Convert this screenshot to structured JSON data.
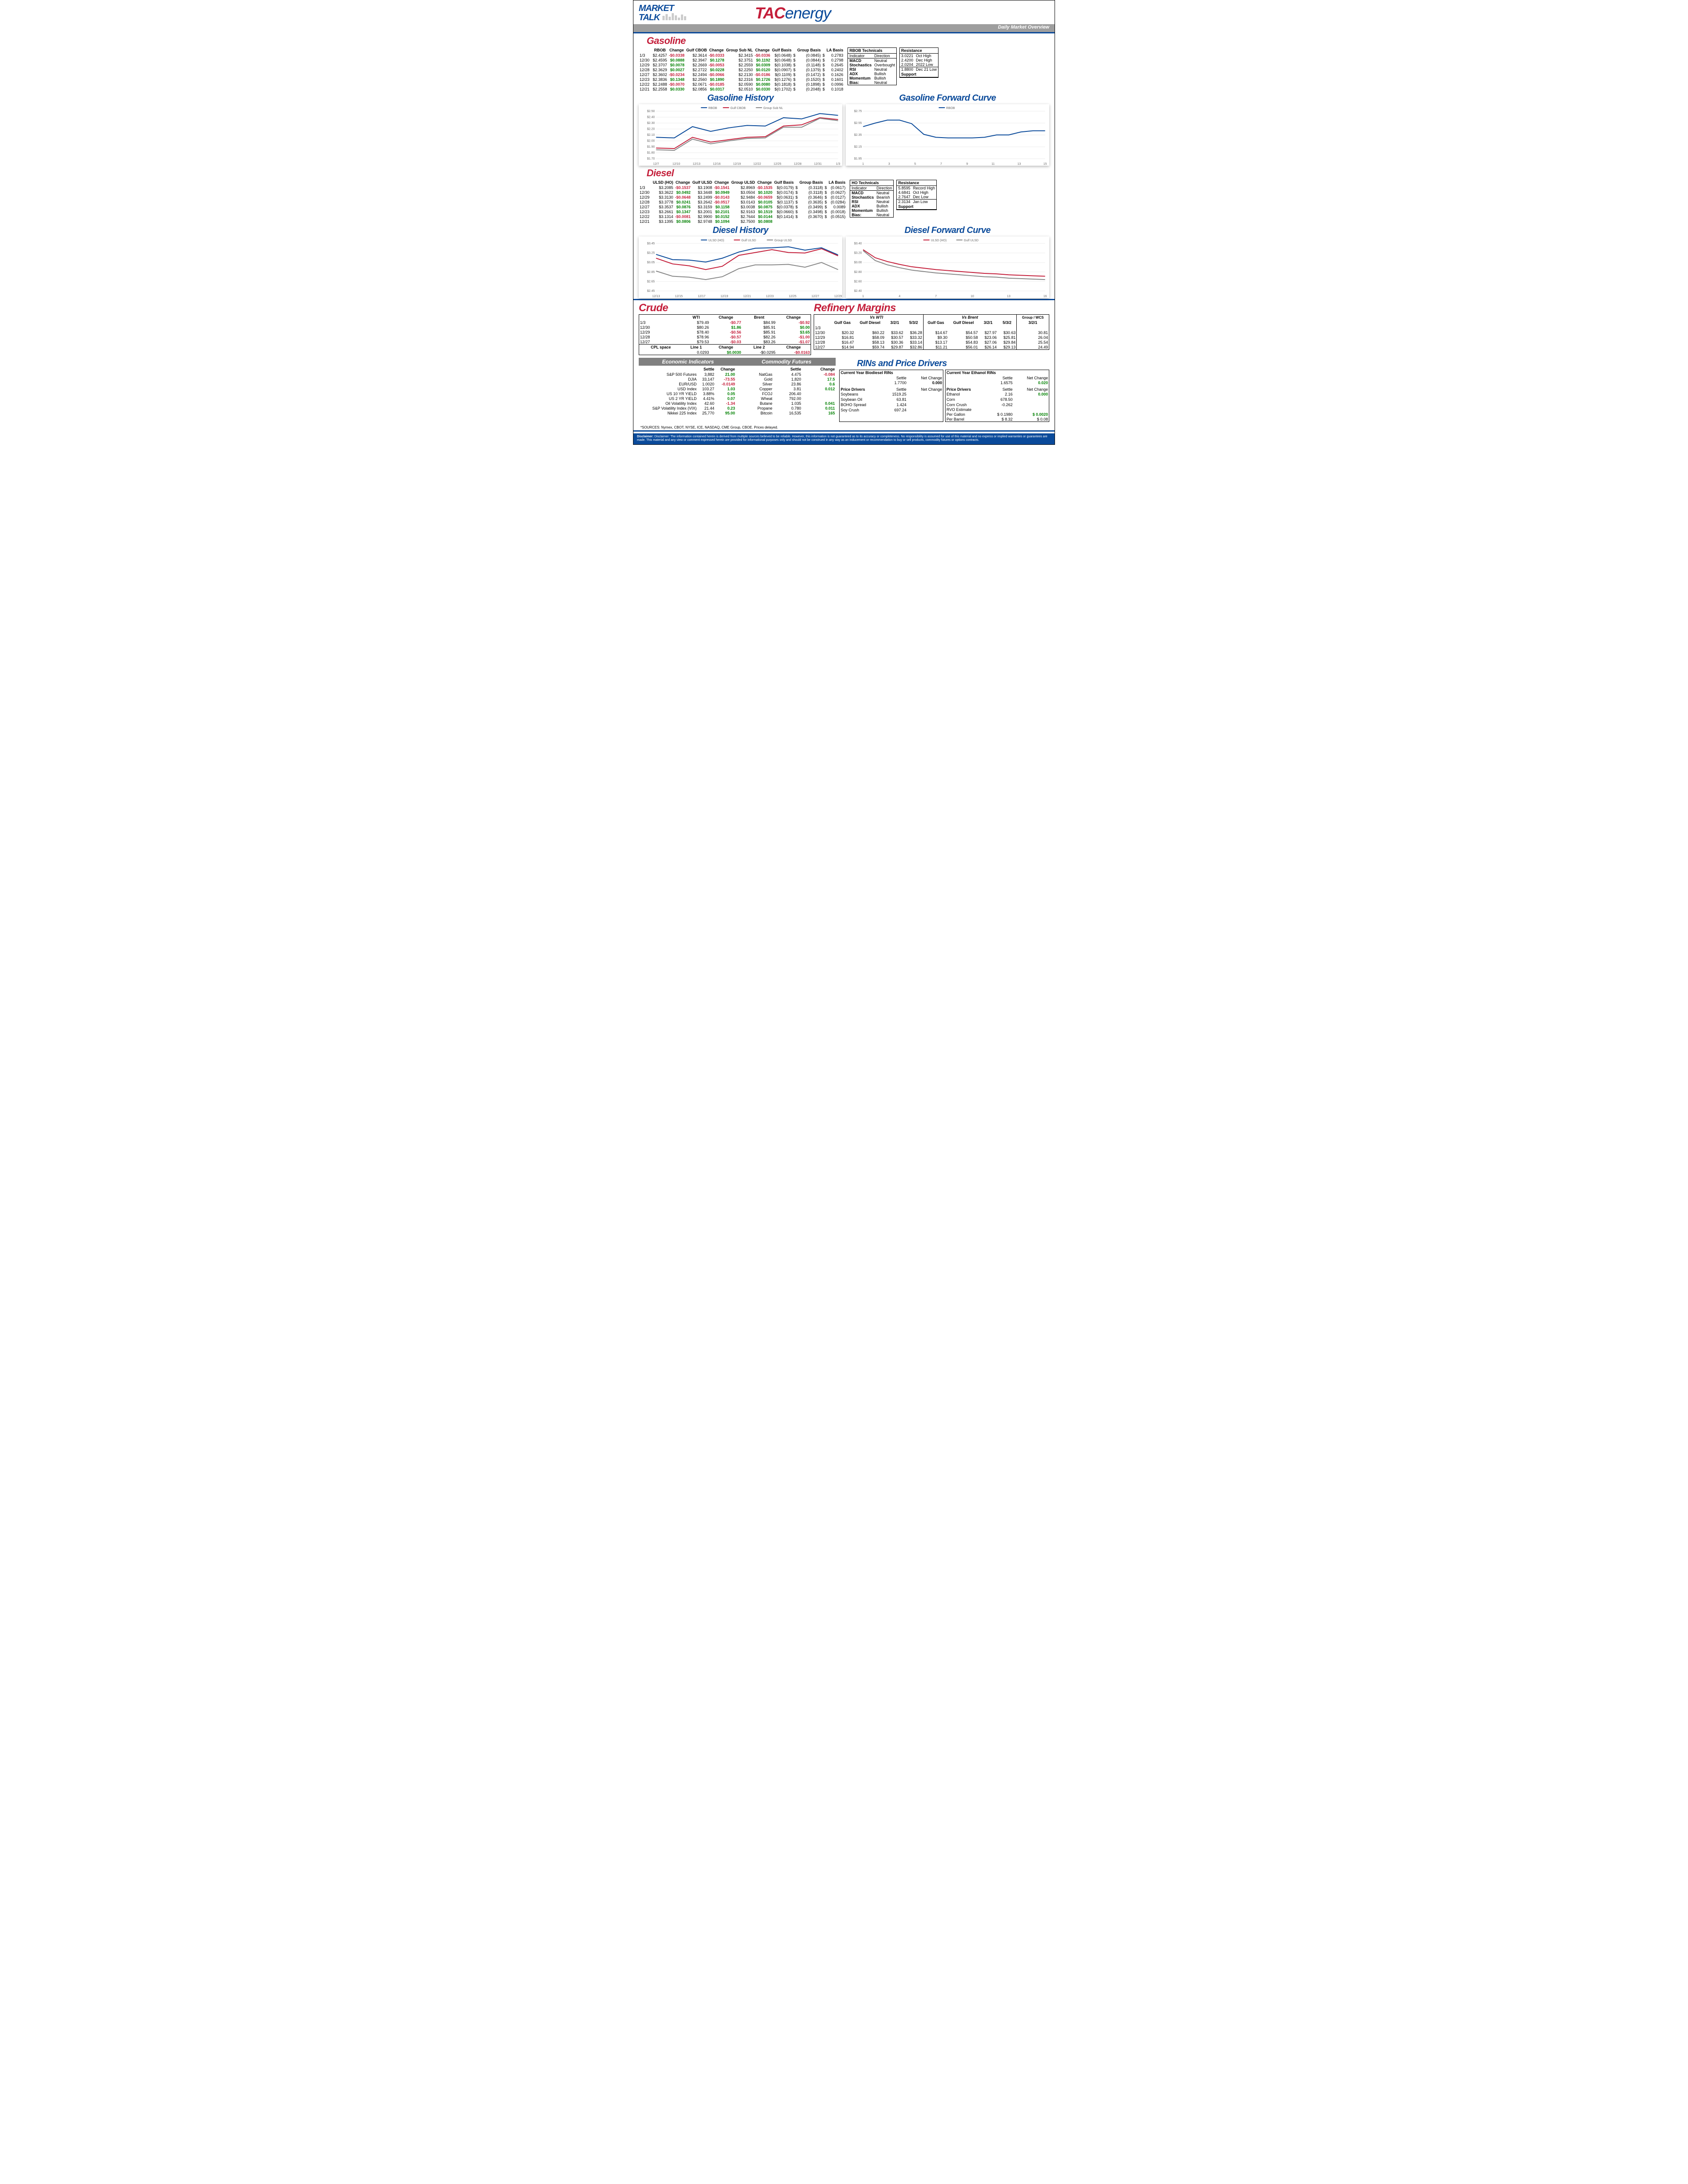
{
  "header": {
    "market_talk_1": "MARKET",
    "market_talk_2": "TALK",
    "logo_tac": "TAC",
    "logo_energy": "energy",
    "overview_label": "Daily Market Overview"
  },
  "gasoline": {
    "title": "Gasoline",
    "headers": [
      "",
      "RBOB",
      "Change",
      "Gulf CBOB",
      "Change",
      "Group Sub NL",
      "Change",
      "Gulf Basis",
      "Group Basis",
      "LA Basis"
    ],
    "rows": [
      [
        "1/3",
        "$2.4257",
        "-$0.0338",
        "$2.3614",
        "-$0.0333",
        "$2.3415",
        "-$0.0336",
        "$(0.0648)",
        "$",
        "(0.0845)",
        "$",
        "0.2783"
      ],
      [
        "12/30",
        "$2.4595",
        "$0.0888",
        "$2.3947",
        "$0.1278",
        "$2.3751",
        "$0.1192",
        "$(0.0648)",
        "$",
        "(0.0844)",
        "$",
        "0.2798"
      ],
      [
        "12/29",
        "$2.3707",
        "$0.0078",
        "$2.2669",
        "-$0.0053",
        "$2.2559",
        "$0.0309",
        "$(0.1038)",
        "$",
        "(0.1148)",
        "$",
        "0.2645"
      ],
      [
        "12/28",
        "$2.3629",
        "$0.0027",
        "$2.2722",
        "$0.0228",
        "$2.2250",
        "$0.0120",
        "$(0.0907)",
        "$",
        "(0.1379)",
        "$",
        "0.2402"
      ],
      [
        "12/27",
        "$2.3602",
        "-$0.0234",
        "$2.2494",
        "-$0.0066",
        "$2.2130",
        "-$0.0186",
        "$(0.1109)",
        "$",
        "(0.1472)",
        "$",
        "0.1626"
      ],
      [
        "12/23",
        "$2.3836",
        "$0.1348",
        "$2.2560",
        "$0.1890",
        "$2.2316",
        "$0.1726",
        "$(0.1276)",
        "$",
        "(0.1520)",
        "$",
        "0.1601"
      ],
      [
        "12/22",
        "$2.2488",
        "-$0.0070",
        "$2.0671",
        "-$0.0185",
        "$2.0590",
        "$0.0080",
        "$(0.1818)",
        "$",
        "(0.1898)",
        "$",
        "0.0996"
      ],
      [
        "12/21",
        "$2.2558",
        "$0.0330",
        "$2.0856",
        "$0.0317",
        "$2.0510",
        "$0.0330",
        "$(0.1702)",
        "$",
        "(0.2048)",
        "$",
        "0.1018"
      ]
    ],
    "row_signs": [
      [
        0,
        -1,
        0,
        -1,
        0,
        -1,
        0,
        0,
        0,
        0
      ],
      [
        0,
        1,
        0,
        1,
        0,
        1,
        0,
        0,
        0,
        0
      ],
      [
        0,
        1,
        0,
        -1,
        0,
        1,
        0,
        0,
        0,
        0
      ],
      [
        0,
        1,
        0,
        1,
        0,
        1,
        0,
        0,
        0,
        0
      ],
      [
        0,
        -1,
        0,
        -1,
        0,
        -1,
        0,
        0,
        0,
        0
      ],
      [
        0,
        1,
        0,
        1,
        0,
        1,
        0,
        0,
        0,
        0
      ],
      [
        0,
        -1,
        0,
        -1,
        0,
        1,
        0,
        0,
        0,
        0
      ],
      [
        0,
        1,
        0,
        1,
        0,
        1,
        0,
        0,
        0,
        0
      ]
    ],
    "tech_title": "RBOB Technicals",
    "tech_headers": [
      "Indicator",
      "Direction"
    ],
    "tech_rows": [
      [
        "MACD",
        "Neutral"
      ],
      [
        "Stochastics",
        "Overbought"
      ],
      [
        "RSI",
        "Neutral"
      ],
      [
        "ADX",
        "Bullish"
      ],
      [
        "Momentum",
        "Bullish"
      ],
      [
        "Bias:",
        "Neutral"
      ]
    ],
    "res_title": "Resistance",
    "res_rows": [
      [
        "3.0221",
        "Oct High"
      ],
      [
        "2.4200",
        "Dec High"
      ],
      [
        "2.0204",
        "2022 Low"
      ],
      [
        "1.8800",
        "Dec 21 Low"
      ]
    ],
    "sup_title": "Support",
    "history_title": "Gasoline History",
    "forward_title": "Gasoline Forward Curve",
    "history_chart": {
      "type": "line",
      "colors": {
        "RBOB": "#0a4a9a",
        "Gulf CBOB": "#c41e3a",
        "Group Sub NL": "#888"
      },
      "x_labels": [
        "12/7",
        "12/10",
        "12/13",
        "12/16",
        "12/19",
        "12/22",
        "12/25",
        "12/28",
        "12/31",
        "1/3"
      ],
      "y_labels": [
        "$1.70",
        "$1.80",
        "$1.90",
        "$2.00",
        "$2.10",
        "$2.20",
        "$2.30",
        "$2.40",
        "$2.50"
      ],
      "ylim": [
        1.7,
        2.5
      ],
      "series": {
        "RBOB": [
          2.06,
          2.05,
          2.24,
          2.16,
          2.22,
          2.26,
          2.25,
          2.39,
          2.37,
          2.46,
          2.43
        ],
        "Gulf CBOB": [
          1.88,
          1.87,
          2.06,
          1.98,
          2.02,
          2.06,
          2.07,
          2.25,
          2.27,
          2.39,
          2.36
        ],
        "Group Sub NL": [
          1.85,
          1.84,
          2.03,
          1.95,
          2.0,
          2.04,
          2.05,
          2.23,
          2.23,
          2.38,
          2.34
        ]
      }
    },
    "forward_chart": {
      "type": "line",
      "colors": {
        "RBOB": "#0a4a9a"
      },
      "x_labels": [
        "1",
        "3",
        "5",
        "7",
        "9",
        "11",
        "13",
        "15"
      ],
      "y_labels": [
        "$1.95",
        "$2.15",
        "$2.35",
        "$2.55",
        "$2.75"
      ],
      "ylim": [
        1.95,
        2.75
      ],
      "series": {
        "RBOB": [
          2.49,
          2.55,
          2.6,
          2.6,
          2.54,
          2.36,
          2.31,
          2.3,
          2.3,
          2.3,
          2.31,
          2.35,
          2.35,
          2.4,
          2.42,
          2.42
        ]
      }
    }
  },
  "diesel": {
    "title": "Diesel",
    "headers": [
      "",
      "ULSD (HO)",
      "Change",
      "Gulf ULSD",
      "Change",
      "Group ULSD",
      "Change",
      "Gulf Basis",
      "Group Basis",
      "LA Basis"
    ],
    "rows": [
      [
        "1/3",
        "$3.2085",
        "-$0.1537",
        "$3.1908",
        "-$0.1541",
        "$2.8969",
        "-$0.1535",
        "$(0.0179)",
        "$",
        "(0.3118)",
        "$",
        "(0.0617)"
      ],
      [
        "12/30",
        "$3.3622",
        "$0.0492",
        "$3.3448",
        "$0.0949",
        "$3.0504",
        "$0.1020",
        "$(0.0174)",
        "$",
        "(0.3118)",
        "$",
        "(0.0627)"
      ],
      [
        "12/29",
        "$3.3130",
        "-$0.0648",
        "$3.2499",
        "-$0.0143",
        "$2.9484",
        "-$0.0659",
        "$(0.0631)",
        "$",
        "(0.3646)",
        "$",
        "(0.0127)"
      ],
      [
        "12/28",
        "$3.3778",
        "$0.0241",
        "$3.2642",
        "-$0.0517",
        "$3.0143",
        "$0.0105",
        "$(0.1137)",
        "$",
        "(0.3635)",
        "$",
        "(0.0284)"
      ],
      [
        "12/27",
        "$3.3537",
        "$0.0876",
        "$3.3159",
        "$0.1158",
        "$3.0038",
        "$0.0875",
        "$(0.0378)",
        "$",
        "(0.3499)",
        "$",
        "0.0089"
      ],
      [
        "12/23",
        "$3.2661",
        "$0.1347",
        "$3.2001",
        "$0.2101",
        "$2.9163",
        "$0.1519",
        "$(0.0660)",
        "$",
        "(0.3498)",
        "$",
        "(0.0018)"
      ],
      [
        "12/22",
        "$3.1314",
        "-$0.0081",
        "$2.9900",
        "$0.0152",
        "$2.7644",
        "$0.0144",
        "$(0.1414)",
        "$",
        "(0.3670)",
        "$",
        "(0.0515)"
      ],
      [
        "12/21",
        "$3.1395",
        "$0.0806",
        "$2.9748",
        "$0.1094",
        "$2.7500",
        "$0.0808",
        "",
        "",
        "",
        "",
        ""
      ]
    ],
    "row_signs": [
      [
        0,
        -1,
        0,
        -1,
        0,
        -1,
        0,
        0,
        0,
        0
      ],
      [
        0,
        1,
        0,
        1,
        0,
        1,
        0,
        0,
        0,
        0
      ],
      [
        0,
        -1,
        0,
        -1,
        0,
        -1,
        0,
        0,
        0,
        0
      ],
      [
        0,
        1,
        0,
        -1,
        0,
        1,
        0,
        0,
        0,
        0
      ],
      [
        0,
        1,
        0,
        1,
        0,
        1,
        0,
        0,
        0,
        0
      ],
      [
        0,
        1,
        0,
        1,
        0,
        1,
        0,
        0,
        0,
        0
      ],
      [
        0,
        -1,
        0,
        1,
        0,
        1,
        0,
        0,
        0,
        0
      ],
      [
        0,
        1,
        0,
        1,
        0,
        1,
        0,
        0,
        0,
        0
      ]
    ],
    "tech_title": "HO Technicals",
    "tech_headers": [
      "Indicator",
      "Direction"
    ],
    "tech_rows": [
      [
        "MACD",
        "Neutral"
      ],
      [
        "Stochastics",
        "Bearish"
      ],
      [
        "RSI",
        "Neutral"
      ],
      [
        "ADX",
        "Bullish"
      ],
      [
        "Momentum",
        "Bullish"
      ],
      [
        "Bias:",
        "Neutral"
      ]
    ],
    "res_title": "Resistance",
    "res_rows": [
      [
        "5.8595",
        "Record High"
      ],
      [
        "4.6841",
        "Oct High"
      ],
      [
        "2.7647",
        "Dec Low"
      ],
      [
        "2.3134",
        "Jan Low"
      ]
    ],
    "sup_title": "Support",
    "history_title": "Diesel History",
    "forward_title": "Diesel Forward Curve",
    "history_chart": {
      "type": "line",
      "colors": {
        "ULSD (HO)": "#0a4a9a",
        "Gulf ULSD": "#c41e3a",
        "Group ULSD": "#888"
      },
      "x_labels": [
        "12/13",
        "12/15",
        "12/17",
        "12/19",
        "12/21",
        "12/23",
        "12/25",
        "12/27",
        "12/29"
      ],
      "y_labels": [
        "$2.45",
        "$2.65",
        "$2.85",
        "$3.05",
        "$3.25",
        "$3.45"
      ],
      "ylim": [
        2.45,
        3.45
      ],
      "series": {
        "ULSD (HO)": [
          3.22,
          3.11,
          3.1,
          3.06,
          3.14,
          3.27,
          3.35,
          3.36,
          3.38,
          3.31,
          3.36,
          3.21
        ],
        "Gulf ULSD": [
          3.14,
          3.02,
          2.98,
          2.9,
          2.97,
          3.2,
          3.26,
          3.32,
          3.26,
          3.25,
          3.34,
          3.19
        ],
        "Group ULSD": [
          2.87,
          2.76,
          2.74,
          2.69,
          2.75,
          2.92,
          3.0,
          3.0,
          3.01,
          2.95,
          3.05,
          2.9
        ]
      }
    },
    "forward_chart": {
      "type": "line",
      "colors": {
        "ULSD (HO)": "#c41e3a",
        "Gulf ULSD": "#888"
      },
      "x_labels": [
        "1",
        "4",
        "7",
        "10",
        "13",
        "16"
      ],
      "y_labels": [
        "$2.40",
        "$2.60",
        "$2.80",
        "$3.00",
        "$3.20",
        "$3.40"
      ],
      "ylim": [
        2.4,
        3.4
      ],
      "series": {
        "ULSD (HO)": [
          3.27,
          3.1,
          3.02,
          2.96,
          2.91,
          2.88,
          2.85,
          2.83,
          2.81,
          2.79,
          2.77,
          2.76,
          2.74,
          2.73,
          2.72,
          2.71
        ],
        "Gulf ULSD": [
          3.25,
          3.04,
          2.95,
          2.89,
          2.84,
          2.81,
          2.78,
          2.76,
          2.74,
          2.72,
          2.7,
          2.69,
          2.67,
          2.66,
          2.65,
          2.64
        ]
      }
    }
  },
  "crude": {
    "title": "Crude",
    "headers": [
      "",
      "WTI",
      "Change",
      "Brent",
      "Change"
    ],
    "rows": [
      [
        "1/3",
        "$79.49",
        "-$0.77",
        "$84.99",
        "-$0.92"
      ],
      [
        "12/30",
        "$80.26",
        "$1.86",
        "$85.91",
        "$0.00"
      ],
      [
        "12/29",
        "$78.40",
        "-$0.56",
        "$85.91",
        "$3.65"
      ],
      [
        "12/28",
        "$78.96",
        "-$0.57",
        "$82.26",
        "-$1.00"
      ],
      [
        "12/27",
        "$79.53",
        "-$0.03",
        "$83.26",
        "-$1.07"
      ]
    ],
    "row_signs": [
      [
        -1,
        -1
      ],
      [
        1,
        1
      ],
      [
        -1,
        1
      ],
      [
        -1,
        -1
      ],
      [
        -1,
        -1
      ]
    ],
    "cpl_headers": [
      "CPL space",
      "Line 1",
      "Change",
      "Line 2",
      "Change"
    ],
    "cpl_row": [
      "",
      "0.0293",
      "$0.0030",
      "-$0.0295",
      "-$0.0163"
    ],
    "cpl_signs": [
      0,
      1,
      0,
      -1
    ]
  },
  "margins": {
    "title": "Refinery Margins",
    "wti_label": "Vs WTI",
    "brent_label": "Vs Brent",
    "group_label": "Group / WCS",
    "sub_headers": [
      "Gulf Gas",
      "Gulf Diesel",
      "3/2/1",
      "5/3/2",
      "Gulf Gas",
      "Gulf Diesel",
      "3/2/1",
      "5/3/2",
      "3/2/1"
    ],
    "rows": [
      [
        "1/3",
        "",
        "",
        "",
        "",
        "",
        "",
        "",
        "",
        ""
      ],
      [
        "12/30",
        "$20.32",
        "$60.22",
        "$33.62",
        "$36.28",
        "$14.67",
        "$54.57",
        "$27.97",
        "$30.63",
        "30.81"
      ],
      [
        "12/29",
        "$16.81",
        "$58.09",
        "$30.57",
        "$33.32",
        "$9.30",
        "$50.58",
        "$23.06",
        "$25.81",
        "26.04"
      ],
      [
        "12/28",
        "$16.47",
        "$58.13",
        "$30.36",
        "$33.14",
        "$13.17",
        "$54.83",
        "$27.06",
        "$29.84",
        "25.54"
      ],
      [
        "12/27",
        "$14.94",
        "$59.74",
        "$29.87",
        "$32.86",
        "$11.21",
        "$56.01",
        "$26.14",
        "$29.13",
        "24.49"
      ]
    ]
  },
  "econ": {
    "title": "Economic Indicators",
    "headers": [
      "",
      "Settle",
      "Change"
    ],
    "rows": [
      [
        "S&P 500 Futures",
        "3,882",
        "21.00",
        1
      ],
      [
        "DJIA",
        "33,147",
        "-73.55",
        -1
      ],
      [
        "EUR/USD",
        "1.0020",
        "-0.0149",
        -1
      ],
      [
        "USD Index",
        "103.27",
        "1.03",
        1
      ],
      [
        "US 10 YR YIELD",
        "3.88%",
        "0.05",
        1
      ],
      [
        "US 2 YR YIELD",
        "4.41%",
        "0.07",
        1
      ],
      [
        "Oil Volatility Index",
        "42.60",
        "-1.34",
        -1
      ],
      [
        "S&P Volatility Index (VIX)",
        "21.44",
        "0.23",
        1
      ],
      [
        "Nikkei 225 Index",
        "25,770",
        "95.00",
        1
      ]
    ]
  },
  "commod": {
    "title": "Commodity Futures",
    "headers": [
      "",
      "Settle",
      "Change"
    ],
    "rows": [
      [
        "NatGas",
        "4.475",
        "-0.084",
        -1
      ],
      [
        "Gold",
        "1,820",
        "17.5",
        1
      ],
      [
        "Silver",
        "23.86",
        "0.6",
        1
      ],
      [
        "Copper",
        "3.81",
        "0.012",
        1
      ],
      [
        "FCOJ",
        "206.40",
        "",
        0
      ],
      [
        "Wheat",
        "792.00",
        "",
        0
      ],
      [
        "Butane",
        "1.035",
        "0.041",
        1
      ],
      [
        "Propane",
        "0.780",
        "0.011",
        1
      ],
      [
        "Bitcoin",
        "16,535",
        "165",
        1
      ]
    ]
  },
  "rins": {
    "title": "RINs and Price Drivers",
    "bio_title": "Current Year Biodiesel RINs",
    "eth_title": "Current Year Ethanol RINs",
    "headers": [
      "",
      "Settle",
      "Net Change"
    ],
    "bio_val": [
      "",
      "1.7700",
      "0.000"
    ],
    "eth_val": [
      "",
      "1.6575",
      "0.020"
    ],
    "drivers_title": "Price Drivers",
    "left_rows": [
      [
        "Soybeans",
        "1519.25",
        ""
      ],
      [
        "",
        "",
        ""
      ],
      [
        "Soybean Oil",
        "63.81",
        ""
      ],
      [
        "",
        "",
        ""
      ],
      [
        "BOHO Spread",
        "1.424",
        ""
      ],
      [
        "",
        "",
        ""
      ],
      [
        "Soy Crush",
        "697.24",
        ""
      ]
    ],
    "right_rows": [
      [
        "Ethanol",
        "2.16",
        "0.000"
      ],
      [
        "",
        "",
        ""
      ],
      [
        "Corn",
        "678.50",
        ""
      ],
      [
        "",
        "",
        ""
      ],
      [
        "Corn Crush",
        "-0.262",
        ""
      ],
      [
        "RVO Estimate",
        "",
        ""
      ],
      [
        "Per Gallon",
        "$   0.1980",
        "$       0.0020"
      ],
      [
        "Per Barrel",
        "$       8.32",
        "$         0.08"
      ]
    ],
    "right_signs": [
      1,
      0,
      0,
      0,
      0,
      0,
      1,
      0
    ]
  },
  "sources": "*SOURCES: Nymex, CBOT, NYSE, ICE, NASDAQ, CME Group, CBOE.   Prices delayed.",
  "disclaimer": "Disclaimer: The information contained herein is derived from multiple sources believed to be reliable.  However, this information is not guaranteed as to its accuracy or completeness. No responsibility is assumed for use of this material and no express or implied warranties or guarantees are made. This material and any view or comment expressed herein are provided for informational purposes only and should not be construed in any way as an inducement or recommendation to buy or sell products, commodity futures or options contracts."
}
